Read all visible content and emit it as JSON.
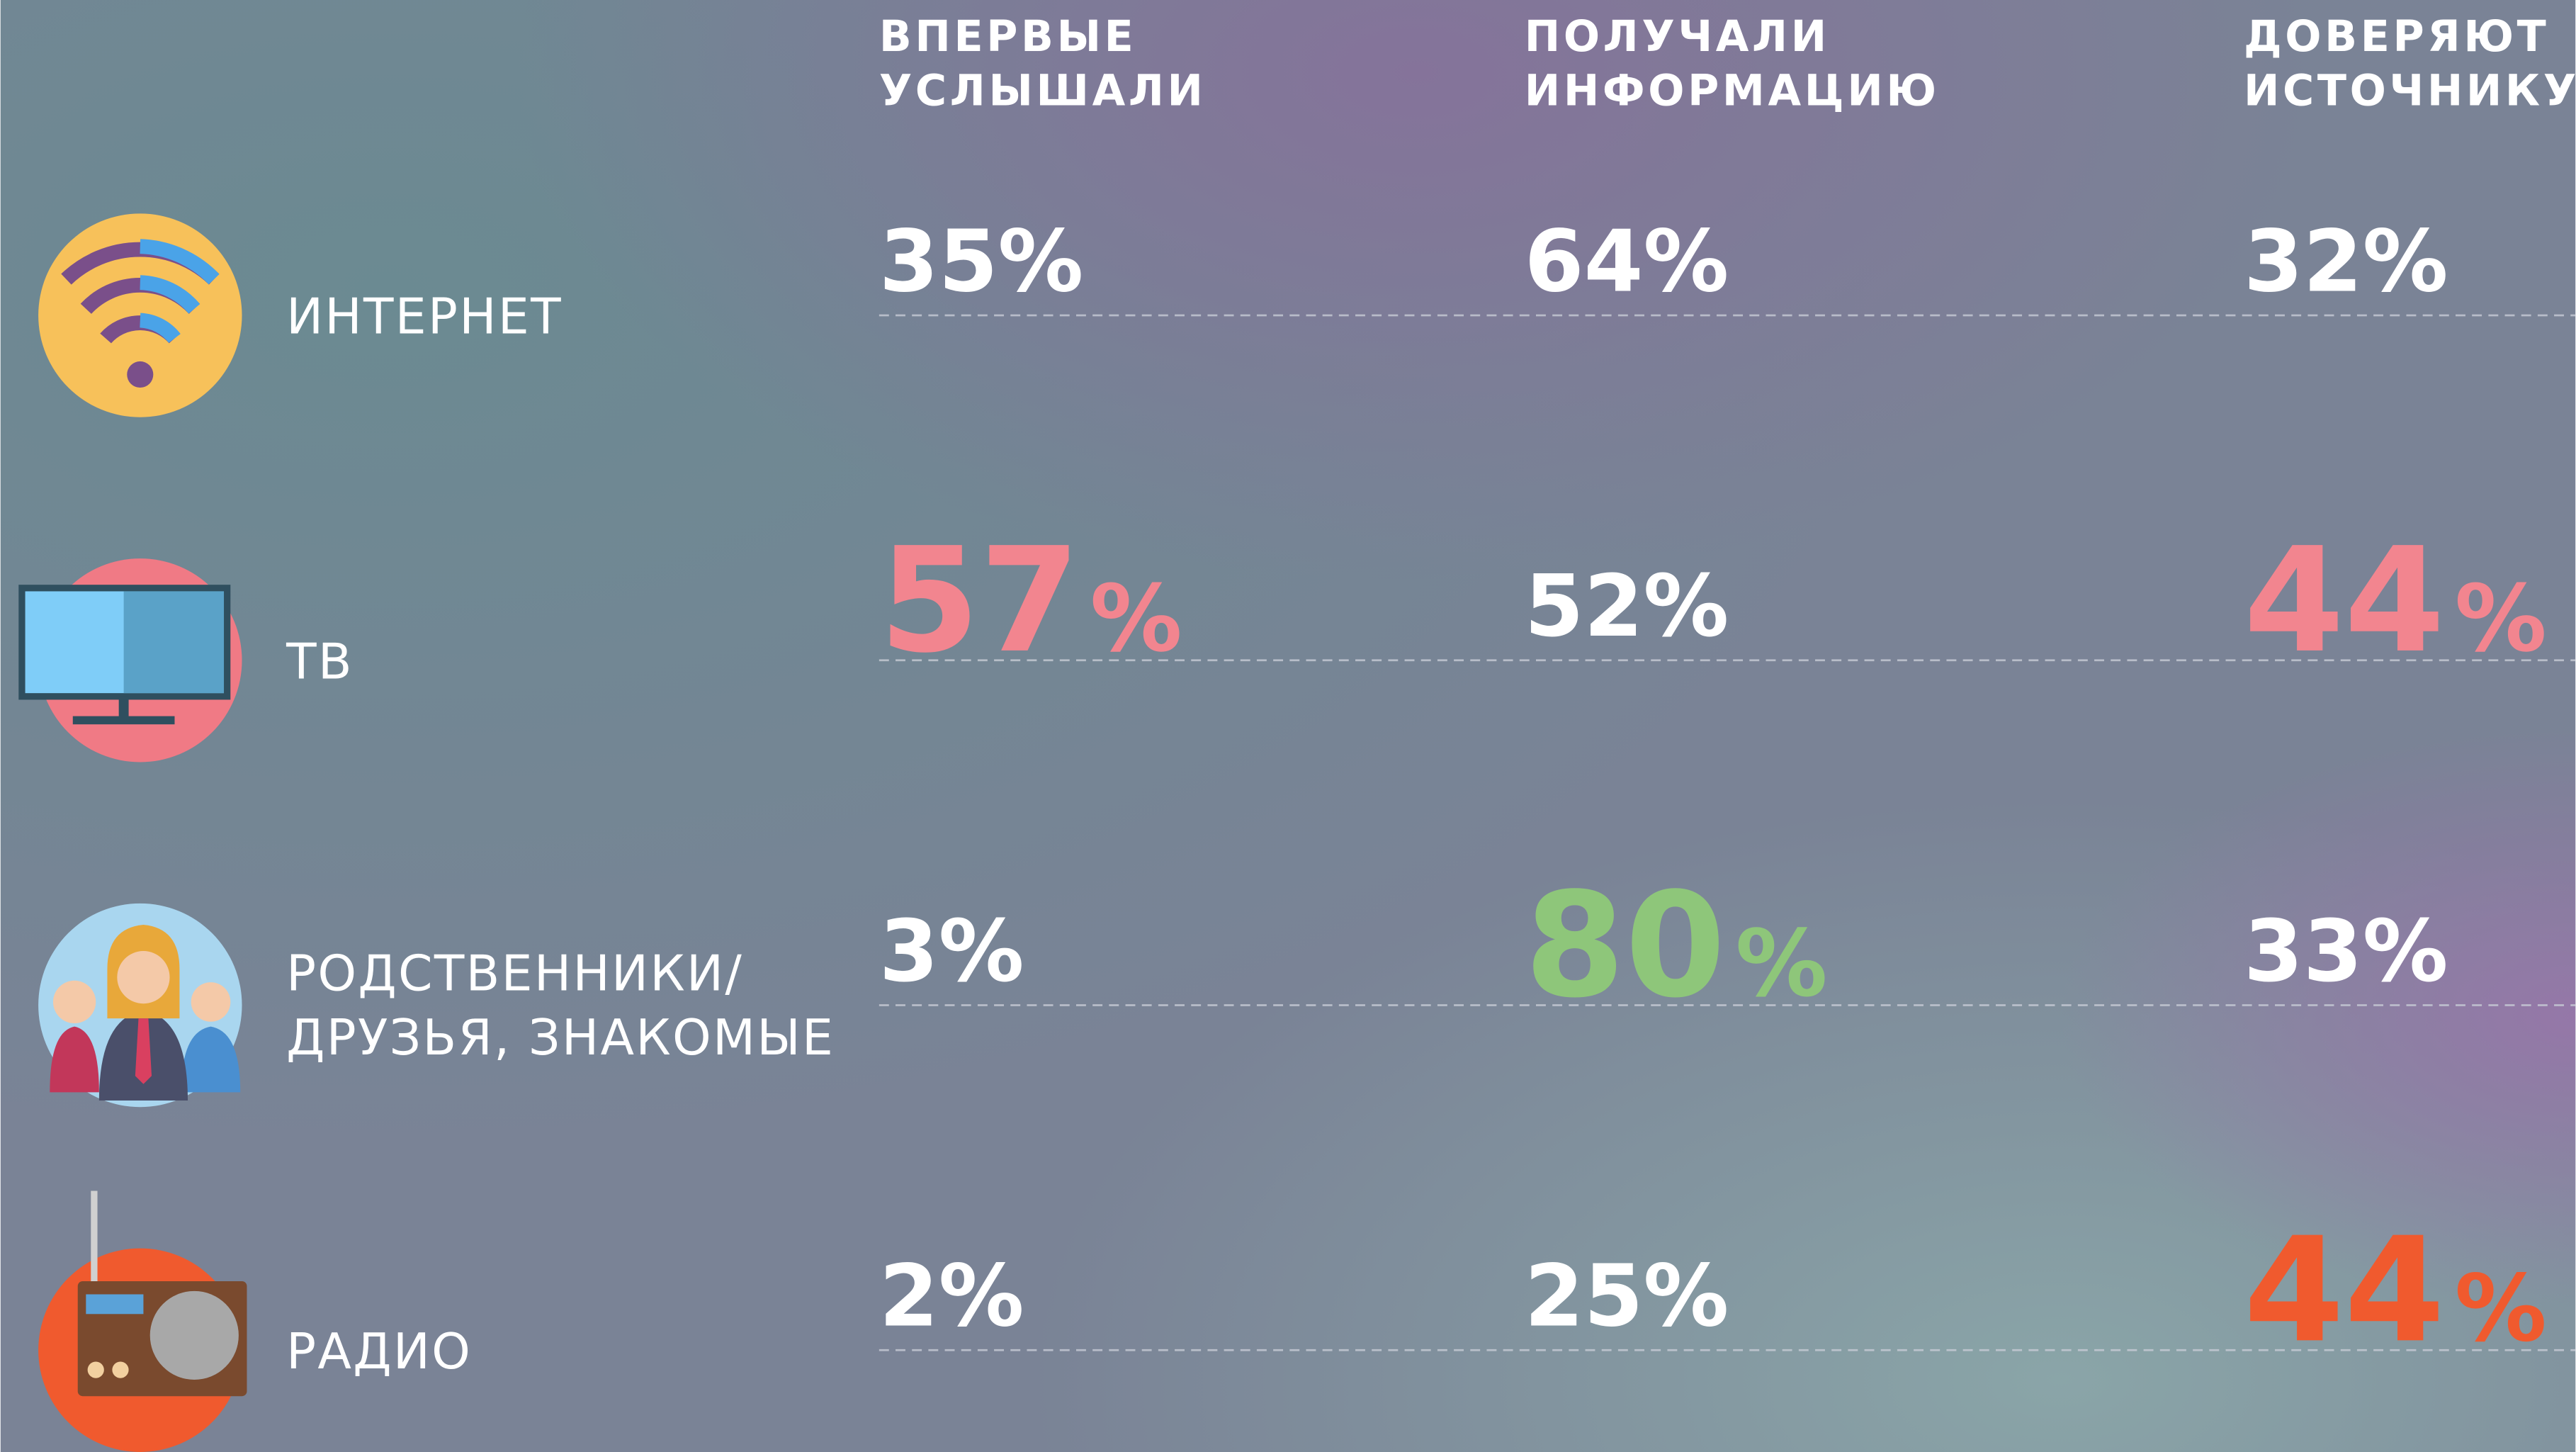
{
  "table": {
    "columns": [
      [
        "ВПЕРВЫЕ",
        "УСЛЫШАЛИ"
      ],
      [
        "ПОЛУЧАЛИ",
        "ИНФОРМАЦИЮ"
      ],
      [
        "ДОВЕРЯЮТ",
        "ИСТОЧНИКУ"
      ]
    ],
    "rows": [
      {
        "label": [
          "ИНТЕРНЕТ"
        ],
        "cells": [
          "35%",
          "64%",
          "32%"
        ]
      },
      {
        "label": [
          "ТВ"
        ],
        "cells": [
          {
            "text": "57%",
            "color": "#f2858f"
          },
          "52%",
          {
            "text": "44%",
            "color": "#f2858f"
          }
        ]
      },
      {
        "label": [
          "РОДСТВЕННИКИ/",
          "ДРУЗЬЯ, ЗНАКОМЫЕ"
        ],
        "cells": [
          "3%",
          {
            "text": "80%",
            "color": "#8ec67a"
          },
          "33%"
        ]
      },
      {
        "label": [
          "РАДИО"
        ],
        "cells": [
          "2%",
          "25%",
          {
            "text": "44%",
            "color": "#f05a2e"
          }
        ]
      }
    ]
  }
}
